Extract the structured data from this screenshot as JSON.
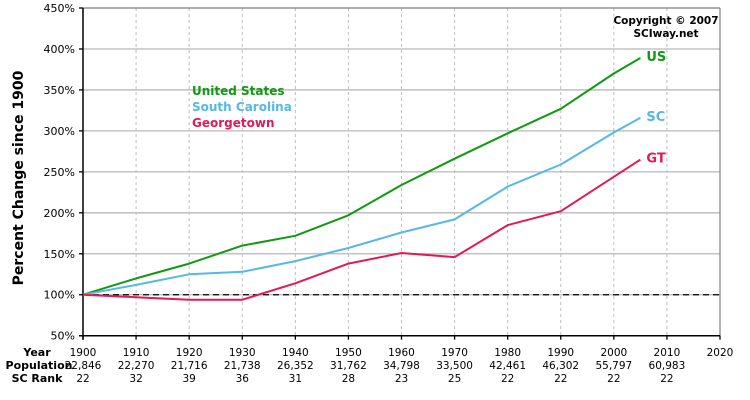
{
  "chart_data": {
    "type": "line",
    "title": "",
    "xlabel": "Year",
    "ylabel": "Percent Change since 1900",
    "ylim": [
      50,
      450
    ],
    "xlim": [
      1900,
      2020
    ],
    "y_ticks": [
      "50%",
      "100%",
      "150%",
      "200%",
      "250%",
      "300%",
      "350%",
      "400%",
      "450%"
    ],
    "y_tick_values": [
      50,
      100,
      150,
      200,
      250,
      300,
      350,
      400,
      450
    ],
    "grid": true,
    "reference_line": {
      "value": 100,
      "style": "dashed",
      "color": "#000000"
    },
    "x": [
      1900,
      1910,
      1920,
      1930,
      1940,
      1950,
      1960,
      1970,
      1980,
      1990,
      2000,
      2005
    ],
    "series": [
      {
        "name": "United States",
        "short": "US",
        "color": "#119911",
        "values": [
          100,
          120,
          138,
          160,
          172,
          197,
          234,
          266,
          297,
          327,
          370,
          389
        ]
      },
      {
        "name": "South Carolina",
        "short": "SC",
        "color": "#55b8e6",
        "values": [
          100,
          112,
          125,
          128,
          141,
          157,
          176,
          192,
          232,
          259,
          298,
          316
        ]
      },
      {
        "name": "Georgetown",
        "short": "GT",
        "color": "#e01a55",
        "values": [
          100,
          97,
          94,
          94,
          114,
          138,
          151,
          146,
          185,
          202,
          244,
          265
        ]
      }
    ],
    "legend_position": "upper-left",
    "annotations": [
      "Copyright © 2007",
      "SCIway.net"
    ]
  },
  "table": {
    "row_headers": [
      "Year",
      "Population",
      "SC Rank"
    ],
    "columns": [
      {
        "year": "1900",
        "population": "22,846",
        "rank": "22"
      },
      {
        "year": "1910",
        "population": "22,270",
        "rank": "32"
      },
      {
        "year": "1920",
        "population": "21,716",
        "rank": "39"
      },
      {
        "year": "1930",
        "population": "21,738",
        "rank": "36"
      },
      {
        "year": "1940",
        "population": "26,352",
        "rank": "31"
      },
      {
        "year": "1950",
        "population": "31,762",
        "rank": "28"
      },
      {
        "year": "1960",
        "population": "34,798",
        "rank": "23"
      },
      {
        "year": "1970",
        "population": "33,500",
        "rank": "25"
      },
      {
        "year": "1980",
        "population": "42,461",
        "rank": "22"
      },
      {
        "year": "1990",
        "population": "46,302",
        "rank": "22"
      },
      {
        "year": "2000",
        "population": "55,797",
        "rank": "22"
      },
      {
        "year": "2010",
        "population": "60,983",
        "rank": "22"
      },
      {
        "year": "2020",
        "population": "",
        "rank": ""
      }
    ]
  },
  "copyright": {
    "line1": "Copyright © 2007",
    "line2": "SCIway.net"
  }
}
